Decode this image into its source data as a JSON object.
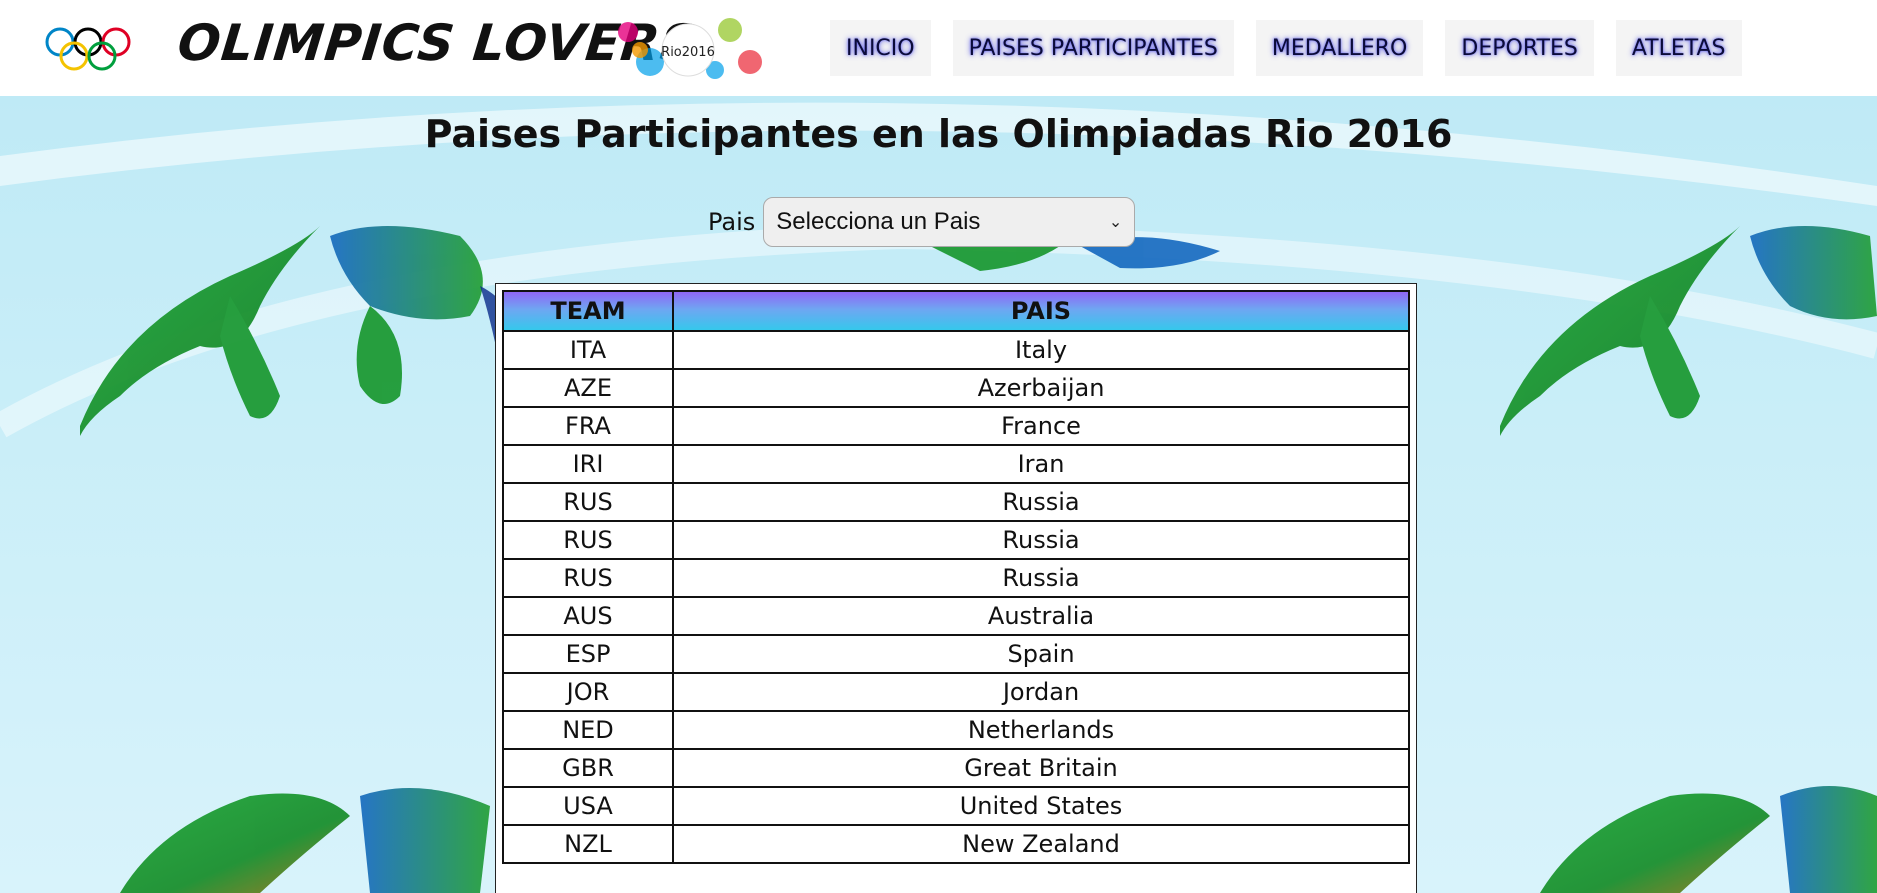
{
  "header": {
    "site_name": "OLIMPICS LOVERS",
    "rio_logo_text": "Rio2016",
    "nav": [
      {
        "label": "INICIO"
      },
      {
        "label": "PAISES PARTICIPANTES"
      },
      {
        "label": "MEDALLERO"
      },
      {
        "label": "DEPORTES"
      },
      {
        "label": "ATLETAS"
      }
    ]
  },
  "main": {
    "title": "Paises Participantes en las Olimpiadas Rio 2016",
    "filter": {
      "label": "Pais",
      "selected": "Selecciona un Pais"
    },
    "table": {
      "headers": [
        "TEAM",
        "PAIS"
      ],
      "rows": [
        [
          "ITA",
          "Italy"
        ],
        [
          "AZE",
          "Azerbaijan"
        ],
        [
          "FRA",
          "France"
        ],
        [
          "IRI",
          "Iran"
        ],
        [
          "RUS",
          "Russia"
        ],
        [
          "RUS",
          "Russia"
        ],
        [
          "RUS",
          "Russia"
        ],
        [
          "AUS",
          "Australia"
        ],
        [
          "ESP",
          "Spain"
        ],
        [
          "JOR",
          "Jordan"
        ],
        [
          "NED",
          "Netherlands"
        ],
        [
          "GBR",
          "Great Britain"
        ],
        [
          "USA",
          "United States"
        ],
        [
          "NZL",
          "New Zealand"
        ]
      ]
    }
  },
  "colors": {
    "ring_blue": "#0085c7",
    "ring_yellow": "#f4c300",
    "ring_black": "#000000",
    "ring_green": "#009f3d",
    "ring_red": "#df0024"
  }
}
